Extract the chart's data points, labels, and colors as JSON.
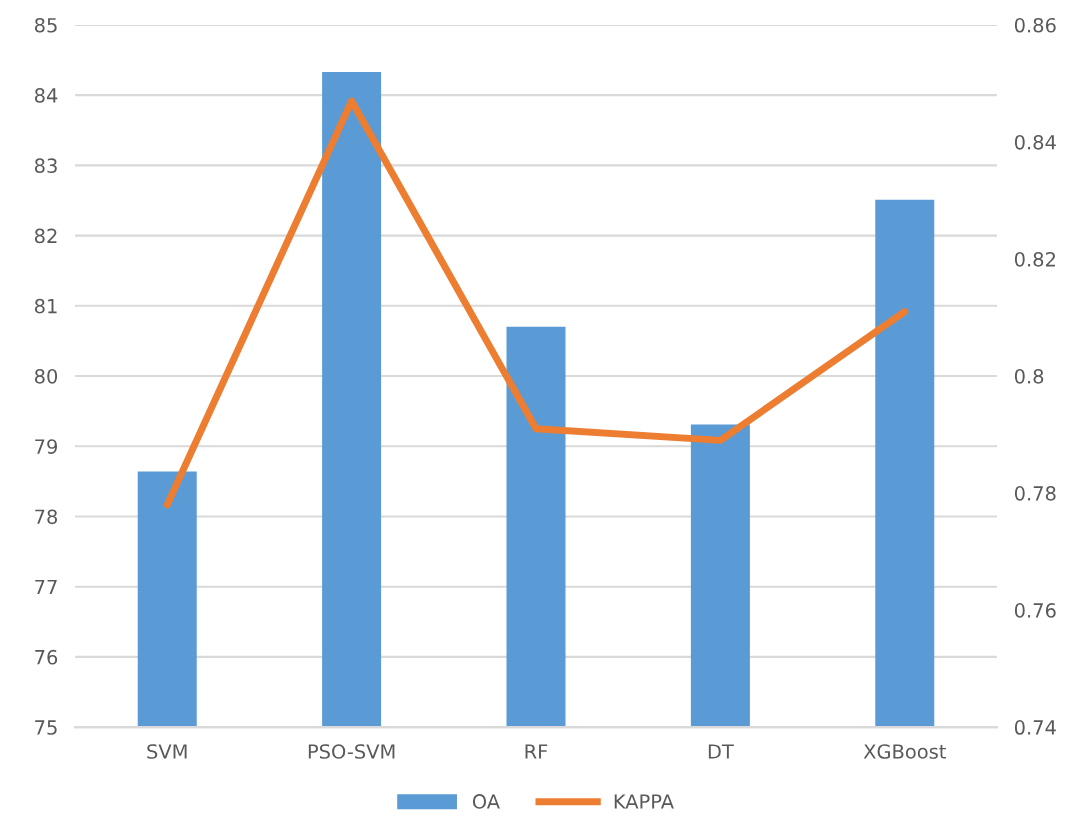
{
  "chart_data": {
    "type": "bar",
    "categories": [
      "SVM",
      "PSO-SVM",
      "RF",
      "DT",
      "XGBoost"
    ],
    "series": [
      {
        "name": "OA",
        "color": "#5b9bd5",
        "values": [
          78.64,
          84.33,
          80.7,
          79.31,
          82.51
        ]
      },
      {
        "name": "KAPPA",
        "type": "line",
        "axis": "y2",
        "color": "#ed7d31",
        "values": [
          0.778,
          0.847,
          0.791,
          0.789,
          0.811
        ]
      }
    ],
    "ylim": [
      75,
      85
    ],
    "yticks": [
      75,
      76,
      77,
      78,
      79,
      80,
      81,
      82,
      83,
      84,
      85
    ],
    "y2lim": [
      0.74,
      0.86
    ],
    "y2ticks": [
      0.74,
      0.76,
      0.78,
      0.8,
      0.82,
      0.84,
      0.86
    ],
    "grid": "y",
    "legend": "bottom",
    "marker": "none",
    "line_style": "solid"
  }
}
